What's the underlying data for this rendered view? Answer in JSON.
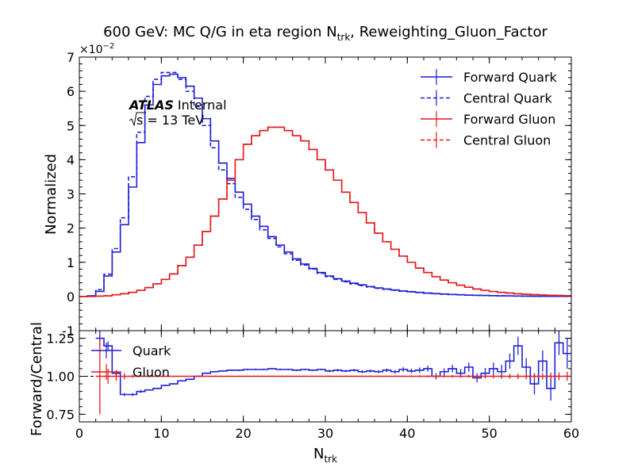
{
  "title_main": "600 GeV: MC Q/G in eta region N",
  "title_sub": "trk",
  "title_tail": ", Reweighting_Gluon_Factor",
  "atlas": {
    "bold": "ATLAS",
    "label": "Internal",
    "energy": "s = 13 TeV"
  },
  "colors": {
    "quark": "#1f1fd6",
    "gluon": "#e31a1c"
  },
  "chart_data": [
    {
      "type": "line",
      "ylabel": "Normalized",
      "y_multiplier_label": "×10",
      "y_multiplier_exp": "−2",
      "xlim": [
        0,
        60
      ],
      "ylim": [
        -1,
        7
      ],
      "yticks": [
        -1,
        0,
        1,
        2,
        3,
        4,
        5,
        6,
        7
      ],
      "bin_edges": [
        0,
        1,
        2,
        3,
        4,
        5,
        6,
        7,
        8,
        9,
        10,
        11,
        12,
        13,
        14,
        15,
        16,
        17,
        18,
        19,
        20,
        21,
        22,
        23,
        24,
        25,
        26,
        27,
        28,
        29,
        30,
        31,
        32,
        33,
        34,
        35,
        36,
        37,
        38,
        39,
        40,
        41,
        42,
        43,
        44,
        45,
        46,
        47,
        48,
        49,
        50,
        51,
        52,
        53,
        54,
        55,
        56,
        57,
        58,
        59,
        60
      ],
      "legend_position": "top-right",
      "series": [
        {
          "name": "Forward Quark",
          "style": "solid",
          "color": "#1f1fd6",
          "values": [
            0,
            0.02,
            0.15,
            0.6,
            1.3,
            2.1,
            3.2,
            4.5,
            5.6,
            6.2,
            6.45,
            6.5,
            6.4,
            6.15,
            5.8,
            5.2,
            4.55,
            3.9,
            3.45,
            3.05,
            2.7,
            2.35,
            2.05,
            1.75,
            1.5,
            1.3,
            1.1,
            0.95,
            0.82,
            0.7,
            0.6,
            0.52,
            0.45,
            0.39,
            0.34,
            0.29,
            0.25,
            0.22,
            0.19,
            0.16,
            0.14,
            0.12,
            0.1,
            0.085,
            0.07,
            0.06,
            0.05,
            0.04,
            0.035,
            0.03,
            0.025,
            0.02,
            0.016,
            0.013,
            0.01,
            0.008,
            0.006,
            0.005,
            0.004,
            0.003
          ]
        },
        {
          "name": "Central Quark",
          "style": "dashed",
          "color": "#1f1fd6",
          "values": [
            0,
            0.02,
            0.2,
            0.65,
            1.4,
            2.3,
            3.5,
            4.8,
            5.85,
            6.35,
            6.55,
            6.55,
            6.35,
            6.0,
            5.55,
            5.0,
            4.35,
            3.7,
            3.3,
            2.9,
            2.55,
            2.25,
            1.95,
            1.7,
            1.45,
            1.25,
            1.06,
            0.92,
            0.8,
            0.68,
            0.58,
            0.5,
            0.43,
            0.37,
            0.32,
            0.28,
            0.24,
            0.21,
            0.18,
            0.155,
            0.135,
            0.115,
            0.095,
            0.08,
            0.068,
            0.058,
            0.048,
            0.04,
            0.034,
            0.029,
            0.024,
            0.019,
            0.015,
            0.012,
            0.009,
            0.007,
            0.005,
            0.004,
            0.003,
            0.002
          ]
        },
        {
          "name": "Forward Gluon",
          "style": "solid",
          "color": "#e31a1c",
          "values": [
            0,
            0,
            0.01,
            0.02,
            0.05,
            0.08,
            0.12,
            0.18,
            0.26,
            0.37,
            0.5,
            0.66,
            0.9,
            1.15,
            1.5,
            1.9,
            2.35,
            2.85,
            3.4,
            4.0,
            4.45,
            4.7,
            4.85,
            4.95,
            4.95,
            4.85,
            4.7,
            4.55,
            4.3,
            4.0,
            3.7,
            3.4,
            3.05,
            2.75,
            2.45,
            2.15,
            1.85,
            1.6,
            1.38,
            1.18,
            1.0,
            0.83,
            0.7,
            0.58,
            0.48,
            0.4,
            0.33,
            0.27,
            0.22,
            0.18,
            0.145,
            0.12,
            0.1,
            0.08,
            0.065,
            0.055,
            0.045,
            0.035,
            0.03,
            0.025
          ]
        },
        {
          "name": "Central Gluon",
          "style": "dashed",
          "color": "#e31a1c",
          "values": [
            0,
            0,
            0.01,
            0.02,
            0.05,
            0.08,
            0.12,
            0.18,
            0.26,
            0.37,
            0.5,
            0.66,
            0.9,
            1.15,
            1.5,
            1.9,
            2.35,
            2.85,
            3.4,
            4.0,
            4.45,
            4.7,
            4.85,
            4.95,
            4.95,
            4.85,
            4.7,
            4.55,
            4.3,
            4.0,
            3.7,
            3.4,
            3.05,
            2.75,
            2.45,
            2.15,
            1.85,
            1.6,
            1.38,
            1.18,
            1.0,
            0.83,
            0.7,
            0.58,
            0.48,
            0.4,
            0.33,
            0.27,
            0.22,
            0.18,
            0.145,
            0.12,
            0.1,
            0.08,
            0.065,
            0.055,
            0.045,
            0.035,
            0.03,
            0.025
          ]
        }
      ]
    },
    {
      "type": "line",
      "xlabel": "N",
      "xlabel_sub": "trk",
      "ylabel": "Forward/Central",
      "xlim": [
        0,
        60
      ],
      "ylim": [
        0.7,
        1.3
      ],
      "xticks": [
        0,
        10,
        20,
        30,
        40,
        50,
        60
      ],
      "yticks": [
        0.75,
        1.0,
        1.25
      ],
      "ytick_labels": [
        "0.75",
        "1.00",
        "1.25"
      ],
      "reference_line": 1.0,
      "legend_position": "top-left",
      "series": [
        {
          "name": "Quark",
          "color": "#1f1fd6",
          "values": [
            1.0,
            1.0,
            1.25,
            1.2,
            1.02,
            0.88,
            0.88,
            0.9,
            0.91,
            0.92,
            0.94,
            0.95,
            0.97,
            0.98,
            1.0,
            1.02,
            1.03,
            1.035,
            1.04,
            1.04,
            1.045,
            1.045,
            1.045,
            1.05,
            1.045,
            1.045,
            1.04,
            1.045,
            1.04,
            1.045,
            1.035,
            1.04,
            1.035,
            1.04,
            1.03,
            1.035,
            1.03,
            1.04,
            1.03,
            1.045,
            1.035,
            1.04,
            1.05,
            1.0,
            1.03,
            1.05,
            1.02,
            1.06,
            0.99,
            1.02,
            1.05,
            1.03,
            1.1,
            1.2,
            1.06,
            0.95,
            1.1,
            0.92,
            1.22,
            1.15
          ],
          "errors": [
            0,
            0,
            0.05,
            0.03,
            0.02,
            0.01,
            0.01,
            0.01,
            0.005,
            0.005,
            0.005,
            0.005,
            0.005,
            0.005,
            0.005,
            0.005,
            0.005,
            0.005,
            0.005,
            0.005,
            0.005,
            0.005,
            0.005,
            0.005,
            0.005,
            0.005,
            0.005,
            0.005,
            0.005,
            0.005,
            0.008,
            0.008,
            0.008,
            0.008,
            0.01,
            0.01,
            0.01,
            0.012,
            0.012,
            0.015,
            0.015,
            0.018,
            0.02,
            0.02,
            0.022,
            0.025,
            0.028,
            0.03,
            0.03,
            0.035,
            0.04,
            0.045,
            0.05,
            0.06,
            0.06,
            0.07,
            0.07,
            0.08,
            0.08,
            0.1
          ]
        },
        {
          "name": "Gluon",
          "color": "#e31a1c",
          "values": [
            1.0,
            1.0,
            1.0,
            1.0,
            1.0,
            1.0,
            1.0,
            1.0,
            1.0,
            1.0,
            1.0,
            1.0,
            1.0,
            1.0,
            1.0,
            1.0,
            1.0,
            1.0,
            1.0,
            1.0,
            1.0,
            1.0,
            1.0,
            1.0,
            1.0,
            1.0,
            1.0,
            1.0,
            1.0,
            1.0,
            1.0,
            1.0,
            1.0,
            1.0,
            1.0,
            1.0,
            1.0,
            1.0,
            1.0,
            1.0,
            1.0,
            1.0,
            1.0,
            1.0,
            1.0,
            1.0,
            1.0,
            1.0,
            1.0,
            1.0,
            1.0,
            1.0,
            1.0,
            1.0,
            1.0,
            1.0,
            1.0,
            1.0,
            1.0,
            1.0
          ],
          "errors": [
            0,
            0,
            0.25,
            0.05,
            0.03,
            0.02,
            0.01,
            0.005,
            0.005,
            0.005,
            0.003,
            0.003,
            0.003,
            0.003,
            0.003,
            0.003,
            0.003,
            0.003,
            0.003,
            0.003,
            0.003,
            0.003,
            0.003,
            0.003,
            0.003,
            0.003,
            0.003,
            0.003,
            0.003,
            0.003,
            0.003,
            0.003,
            0.003,
            0.003,
            0.004,
            0.004,
            0.004,
            0.005,
            0.005,
            0.005,
            0.006,
            0.006,
            0.007,
            0.008,
            0.008,
            0.009,
            0.01,
            0.01,
            0.012,
            0.012,
            0.014,
            0.015,
            0.016,
            0.018,
            0.02,
            0.02,
            0.022,
            0.024,
            0.026,
            0.03
          ]
        }
      ]
    }
  ]
}
